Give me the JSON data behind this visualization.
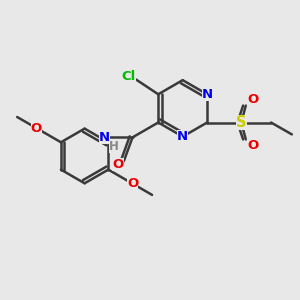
{
  "bg_color": "#e8e8e8",
  "bond_color": "#3a3a3a",
  "bond_width": 1.8,
  "colors": {
    "N": "#0000ee",
    "O": "#ee0000",
    "S": "#cccc00",
    "Cl": "#00bb00",
    "C": "#3a3a3a",
    "H": "#888888"
  },
  "font_size": 9.5
}
